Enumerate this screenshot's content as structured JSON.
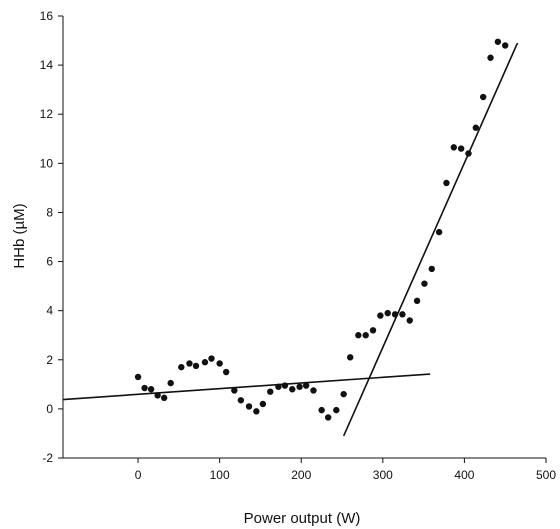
{
  "chart_data": {
    "type": "scatter",
    "title": "",
    "xlabel": "Power output (W)",
    "ylabel": "HHb (µM)",
    "xlim": [
      -92,
      500
    ],
    "ylim": [
      -2,
      16
    ],
    "xticks": [
      0,
      100,
      200,
      300,
      400,
      500
    ],
    "yticks": [
      -2,
      0,
      2,
      4,
      6,
      8,
      10,
      12,
      14,
      16
    ],
    "grid": false,
    "legend": "none",
    "points": [
      {
        "x": 0,
        "y": 1.3
      },
      {
        "x": 8,
        "y": 0.85
      },
      {
        "x": 16,
        "y": 0.8
      },
      {
        "x": 24,
        "y": 0.55
      },
      {
        "x": 32,
        "y": 0.45
      },
      {
        "x": 40,
        "y": 1.05
      },
      {
        "x": 53,
        "y": 1.7
      },
      {
        "x": 63,
        "y": 1.85
      },
      {
        "x": 71,
        "y": 1.75
      },
      {
        "x": 82,
        "y": 1.9
      },
      {
        "x": 90,
        "y": 2.05
      },
      {
        "x": 100,
        "y": 1.85
      },
      {
        "x": 108,
        "y": 1.5
      },
      {
        "x": 118,
        "y": 0.75
      },
      {
        "x": 126,
        "y": 0.35
      },
      {
        "x": 136,
        "y": 0.1
      },
      {
        "x": 145,
        "y": -0.1
      },
      {
        "x": 153,
        "y": 0.2
      },
      {
        "x": 162,
        "y": 0.7
      },
      {
        "x": 172,
        "y": 0.9
      },
      {
        "x": 180,
        "y": 0.95
      },
      {
        "x": 189,
        "y": 0.8
      },
      {
        "x": 198,
        "y": 0.9
      },
      {
        "x": 206,
        "y": 0.95
      },
      {
        "x": 215,
        "y": 0.75
      },
      {
        "x": 225,
        "y": -0.05
      },
      {
        "x": 233,
        "y": -0.35
      },
      {
        "x": 243,
        "y": -0.05
      },
      {
        "x": 252,
        "y": 0.6
      },
      {
        "x": 260,
        "y": 2.1
      },
      {
        "x": 270,
        "y": 3.0
      },
      {
        "x": 279,
        "y": 3.0
      },
      {
        "x": 288,
        "y": 3.2
      },
      {
        "x": 297,
        "y": 3.8
      },
      {
        "x": 306,
        "y": 3.9
      },
      {
        "x": 315,
        "y": 3.85
      },
      {
        "x": 324,
        "y": 3.85
      },
      {
        "x": 333,
        "y": 3.6
      },
      {
        "x": 342,
        "y": 4.4
      },
      {
        "x": 351,
        "y": 5.1
      },
      {
        "x": 360,
        "y": 5.7
      },
      {
        "x": 369,
        "y": 7.2
      },
      {
        "x": 378,
        "y": 9.2
      },
      {
        "x": 387,
        "y": 10.65
      },
      {
        "x": 396,
        "y": 10.6
      },
      {
        "x": 405,
        "y": 10.4
      },
      {
        "x": 414,
        "y": 11.45
      },
      {
        "x": 423,
        "y": 12.7
      },
      {
        "x": 432,
        "y": 14.3
      },
      {
        "x": 441,
        "y": 14.95
      },
      {
        "x": 450,
        "y": 14.8
      }
    ],
    "lines": [
      {
        "x": [
          -92,
          358
        ],
        "y": [
          0.38,
          1.42
        ]
      },
      {
        "x": [
          252,
          465
        ],
        "y": [
          -1.1,
          14.9
        ]
      }
    ],
    "colors": {
      "points": "#111111",
      "lines": "#111111",
      "axes": "#111111"
    }
  }
}
